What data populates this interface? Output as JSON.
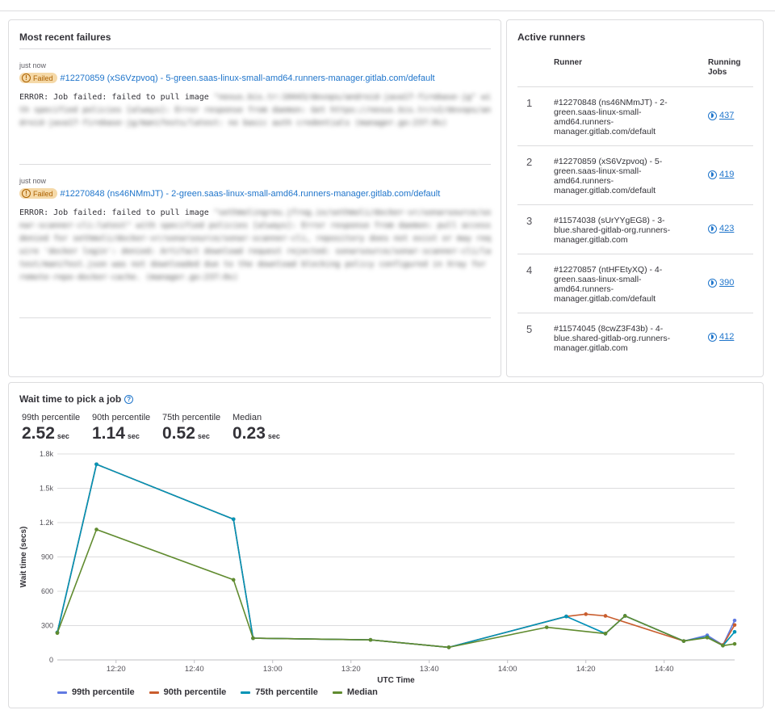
{
  "failures": {
    "title": "Most recent failures",
    "items": [
      {
        "time": "just now",
        "badge": "Failed",
        "job_link": "#12270859 (xS6Vzpvoq) - 5-green.saas-linux-small-amd64.runners-manager.gitlab.com/default",
        "error_prefix": "ERROR: Job failed: failed to pull image",
        "error_blurred": "\"nexus.bis.tr:10443/devops/android-java17-firebase-jg\" with specified policies [always]: Error response from daemon: Get https://nexus.bis.tr/v2/devops/android-java17-firebase-jg/manifests/latest: no basic auth credentials (manager.go:237:0s)"
      },
      {
        "time": "just now",
        "badge": "Failed",
        "job_link": "#12270848 (ns46NMmJT) - 2-green.saas-linux-small-amd64.runners-manager.gitlab.com/default",
        "error_prefix": "ERROR: Job failed: failed to pull image",
        "error_blurred": "\"sethmolingreu.jfrog.io/sethmoli/docker-vr/sonarsource/sonar-scanner-cli:latest\" with specified policies [always]: Error response from daemon: pull access denied for sethmoli/docker-vr/sonarsource/sonar-scanner-cli, repository does not exist or may require 'docker login': denied: Artifact download request rejected: sonarsource/sonar-scanner-cli/latest/manifest.json was not downloaded due to the download blocking policy configured in Xray for remote-repo-docker-cache. (manager.go:237:0s)"
      }
    ]
  },
  "runners": {
    "title": "Active runners",
    "col_runner": "Runner",
    "col_jobs": "Running Jobs",
    "rows": [
      {
        "rank": "1",
        "name": "#12270848 (ns46NMmJT) - 2-green.saas-linux-small-amd64.runners-manager.gitlab.com/default",
        "jobs": "437"
      },
      {
        "rank": "2",
        "name": "#12270859 (xS6Vzpvoq) - 5-green.saas-linux-small-amd64.runners-manager.gitlab.com/default",
        "jobs": "419"
      },
      {
        "rank": "3",
        "name": "#11574038 (sUrYYgEG8) - 3-blue.shared-gitlab-org.runners-manager.gitlab.com",
        "jobs": "423"
      },
      {
        "rank": "4",
        "name": "#12270857 (ntHFEtyXQ) - 4-green.saas-linux-small-amd64.runners-manager.gitlab.com/default",
        "jobs": "390"
      },
      {
        "rank": "5",
        "name": "#11574045 (8cwZ3F43b) - 4-blue.shared-gitlab-org.runners-manager.gitlab.com",
        "jobs": "412"
      }
    ]
  },
  "wait": {
    "title": "Wait time to pick a job",
    "help_icon": "question-circle-icon",
    "stats": [
      {
        "label": "99th percentile",
        "value": "2.52",
        "unit": "sec"
      },
      {
        "label": "90th percentile",
        "value": "1.14",
        "unit": "sec"
      },
      {
        "label": "75th percentile",
        "value": "0.52",
        "unit": "sec"
      },
      {
        "label": "Median",
        "value": "0.23",
        "unit": "sec"
      }
    ]
  },
  "chart_data": {
    "type": "line",
    "xlabel": "UTC Time",
    "ylabel": "Wait time (secs)",
    "ylim": [
      0,
      1800
    ],
    "yticks": [
      0,
      300,
      600,
      900,
      1200,
      1500,
      1800
    ],
    "ytick_labels": [
      "0",
      "300",
      "600",
      "900",
      "1.2k",
      "1.5k",
      "1.8k"
    ],
    "x_range": [
      "12:05",
      "14:58"
    ],
    "xticks": [
      "12:20",
      "12:40",
      "13:00",
      "13:20",
      "13:40",
      "14:00",
      "14:20",
      "14:40"
    ],
    "grid": true,
    "legend_position": "bottom-left",
    "series": [
      {
        "name": "99th percentile",
        "color": "#617ae2",
        "x": [
          "12:05",
          "12:15",
          "12:50",
          "12:55",
          "13:25",
          "13:45",
          "14:15",
          "14:25",
          "14:30",
          "14:45",
          "14:51",
          "14:55",
          "14:58"
        ],
        "y": [
          240,
          1710,
          1230,
          190,
          175,
          110,
          380,
          230,
          385,
          165,
          215,
          130,
          345
        ]
      },
      {
        "name": "90th percentile",
        "color": "#c95d2e",
        "x": [
          "12:05",
          "12:15",
          "12:50",
          "12:55",
          "13:25",
          "13:45",
          "14:15",
          "14:20",
          "14:25",
          "14:45",
          "14:51",
          "14:55",
          "14:58"
        ],
        "y": [
          240,
          1710,
          1230,
          190,
          175,
          110,
          380,
          400,
          385,
          165,
          200,
          130,
          305
        ]
      },
      {
        "name": "75th percentile",
        "color": "#0094b6",
        "x": [
          "12:05",
          "12:15",
          "12:50",
          "12:55",
          "13:25",
          "13:45",
          "14:15",
          "14:25",
          "14:30",
          "14:45",
          "14:51",
          "14:55",
          "14:58"
        ],
        "y": [
          240,
          1710,
          1230,
          190,
          175,
          110,
          380,
          230,
          385,
          165,
          200,
          125,
          245
        ]
      },
      {
        "name": "Median",
        "color": "#608b2f",
        "x": [
          "12:05",
          "12:15",
          "12:50",
          "12:55",
          "13:25",
          "13:45",
          "14:10",
          "14:25",
          "14:30",
          "14:45",
          "14:51",
          "14:55",
          "14:58"
        ],
        "y": [
          235,
          1140,
          700,
          190,
          175,
          110,
          285,
          230,
          385,
          165,
          195,
          125,
          140
        ]
      }
    ]
  }
}
